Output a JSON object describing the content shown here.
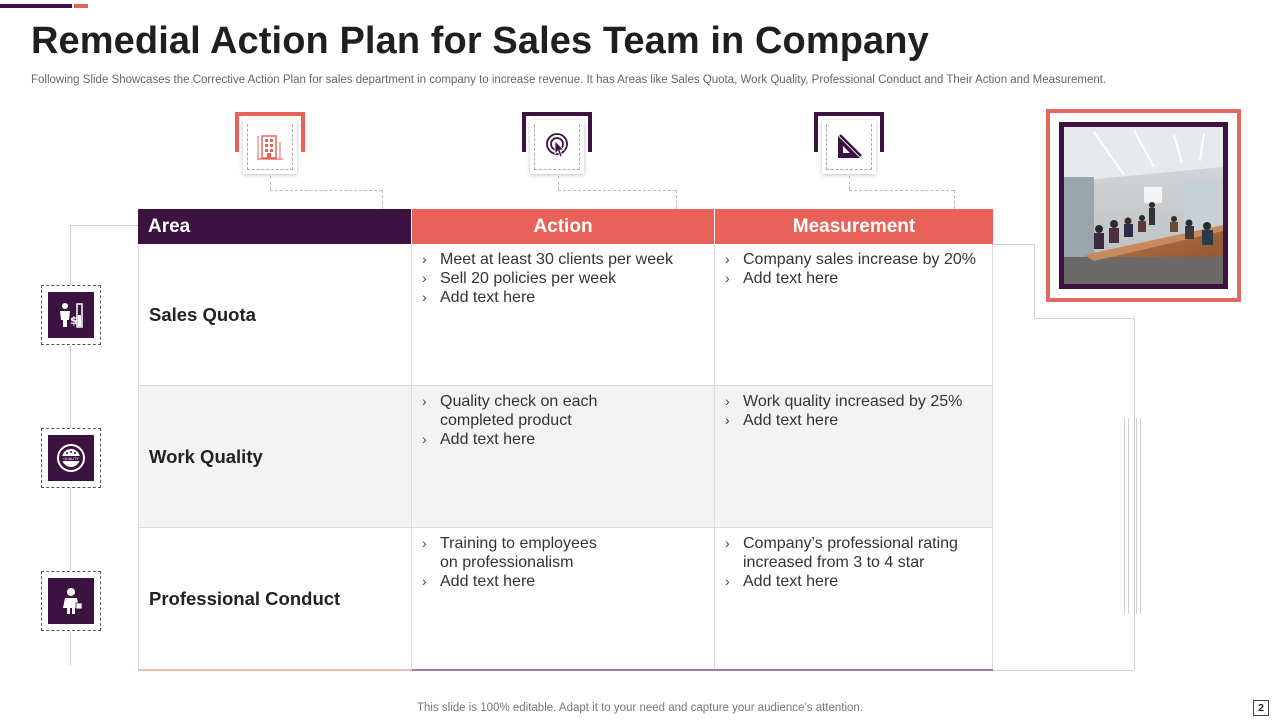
{
  "header": {
    "title": "Remedial Action Plan for Sales Team in Company",
    "subtitle": "Following Slide Showcases the Corrective Action Plan for  sales department in company to increase revenue. It has Areas like Sales Quota, Work Quality, Professional Conduct and Their Action and Measurement."
  },
  "colors": {
    "accent_dark": "#3b1240",
    "accent_red": "#e8625a"
  },
  "top_icons": [
    {
      "name": "building-icon"
    },
    {
      "name": "target-click-icon"
    },
    {
      "name": "set-square-icon"
    }
  ],
  "table": {
    "headers": {
      "area": "Area",
      "action": "Action",
      "measurement": "Measurement"
    },
    "rows": [
      {
        "area": "Sales Quota",
        "icon": "sales-person-icon",
        "actions": [
          "Meet at least 30 clients per week",
          "Sell 20 policies per week",
          "Add text here"
        ],
        "measurements": [
          "Company sales increase by 20%",
          "Add text here"
        ]
      },
      {
        "area": "Work Quality",
        "icon": "quality-badge-icon",
        "actions": [
          "Quality check on each\ncompleted product",
          "Add text here"
        ],
        "measurements": [
          "Work quality increased by 25%",
          "Add text here"
        ]
      },
      {
        "area": "Professional Conduct",
        "icon": "businesswoman-icon",
        "actions": [
          "Training to employees\non professionalism",
          "Add text here"
        ],
        "measurements": [
          "Company’s professional rating\nincreased from 3 to 4 star",
          "Add text here"
        ]
      }
    ]
  },
  "photo": {
    "name": "meeting-room-photo"
  },
  "footer": {
    "note": "This slide is 100% editable. Adapt it to your need and capture your audience’s attention.",
    "page_number": "2"
  }
}
